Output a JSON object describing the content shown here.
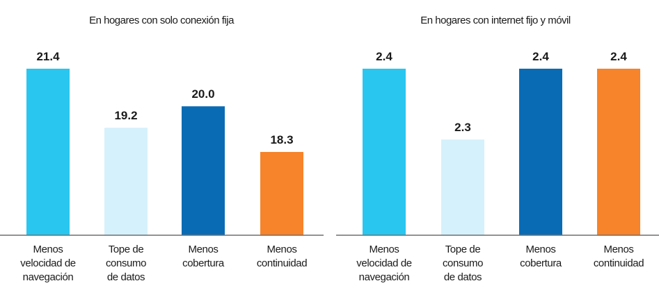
{
  "chart_data": [
    {
      "type": "bar",
      "title": "En hogares con solo conexión fija",
      "categories": [
        [
          "Menos",
          "velocidad de",
          "navegación"
        ],
        [
          "Tope de",
          "consumo",
          "de datos"
        ],
        [
          "Menos",
          "cobertura"
        ],
        [
          "Menos",
          "continuidad"
        ]
      ],
      "values": [
        21.4,
        19.2,
        20.0,
        18.3
      ],
      "value_labels": [
        "21.4",
        "19.2",
        "20.0",
        "18.3"
      ],
      "colors": [
        "#29c6f0",
        "#d5f1fb",
        "#0a6bb5",
        "#f7832a"
      ],
      "ylim": [
        15.2,
        21.4
      ],
      "xlabel": "",
      "ylabel": "",
      "grid": false
    },
    {
      "type": "bar",
      "title": "En hogares con internet fijo y móvil",
      "categories": [
        [
          "Menos",
          "velocidad de",
          "navegación"
        ],
        [
          "Tope de",
          "consumo",
          "de datos"
        ],
        [
          "Menos",
          "cobertura"
        ],
        [
          "Menos",
          "continuidad"
        ]
      ],
      "values": [
        2.4,
        2.3,
        2.4,
        2.4
      ],
      "value_labels": [
        "2.4",
        "2.3",
        "2.4",
        "2.4"
      ],
      "colors": [
        "#29c6f0",
        "#d5f1fb",
        "#0a6bb5",
        "#f7832a"
      ],
      "ylim": [
        2.165,
        2.4
      ],
      "xlabel": "",
      "ylabel": "",
      "grid": false
    }
  ]
}
